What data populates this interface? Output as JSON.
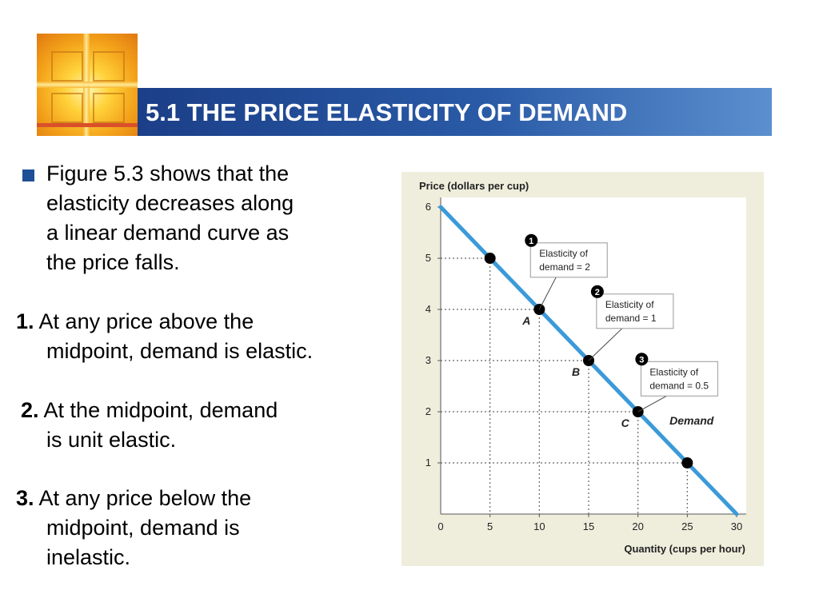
{
  "slide": {
    "title": "5.1 THE PRICE ELASTICITY OF DEMAND",
    "bullet_text": "Figure 5.3 shows that the elasticity decreases along a linear demand curve as the price falls.",
    "bullet_lines": [
      "Figure 5.3 shows that the",
      "elasticity decreases along",
      "a linear demand curve as",
      "the price falls."
    ],
    "points": [
      {
        "number": "1.",
        "lines": [
          "At any price above the",
          "midpoint, demand is elastic."
        ]
      },
      {
        "number": "2.",
        "lines": [
          "At the midpoint, demand",
          "is unit elastic."
        ]
      },
      {
        "number": "3.",
        "lines": [
          "At any price below the",
          "midpoint, demand is",
          "inelastic."
        ]
      }
    ],
    "colors": {
      "title_bar": "#1b3f88",
      "bullet": "#1f4f97"
    }
  },
  "chart_data": {
    "type": "line",
    "ylabel": "Price (dollars per cup)",
    "xlabel": "Quantity (cups per hour)",
    "xlim": [
      0,
      30
    ],
    "ylim": [
      0,
      6
    ],
    "x_ticks": [
      "0",
      "5",
      "10",
      "15",
      "20",
      "25",
      "30"
    ],
    "y_ticks": [
      "1",
      "2",
      "3",
      "4",
      "5",
      "6"
    ],
    "grid": "dotted guide lines from marked points to axes",
    "demand_curve": {
      "name": "Demand",
      "x": [
        0,
        30
      ],
      "y": [
        6,
        0
      ],
      "color": "#3b9ad9"
    },
    "marked_points": [
      {
        "x": 5,
        "y": 5,
        "label": ""
      },
      {
        "x": 10,
        "y": 4,
        "label": "A"
      },
      {
        "x": 15,
        "y": 3,
        "label": "B"
      },
      {
        "x": 20,
        "y": 2,
        "label": "C"
      },
      {
        "x": 25,
        "y": 1,
        "label": ""
      }
    ],
    "annotations": [
      {
        "marker": "1",
        "line1": "Elasticity of",
        "line2": "demand = 2",
        "point": "A"
      },
      {
        "marker": "2",
        "line1": "Elasticity of",
        "line2": "demand = 1",
        "point": "B"
      },
      {
        "marker": "3",
        "line1": "Elasticity of",
        "line2": "demand = 0.5",
        "point": "C"
      }
    ]
  }
}
